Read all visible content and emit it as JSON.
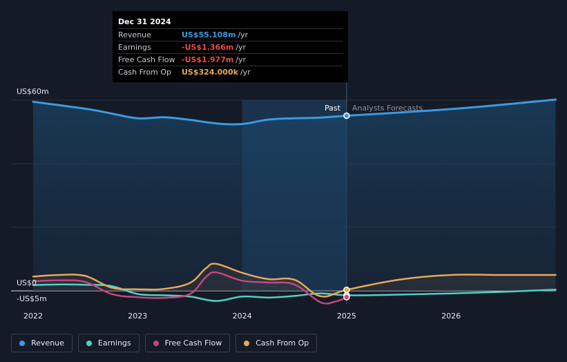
{
  "tooltip": {
    "date": "Dec 31 2024",
    "rows": [
      {
        "name": "Revenue",
        "value": "US$55.108m",
        "unit": "/yr",
        "color": "#3b9ae1"
      },
      {
        "name": "Earnings",
        "value": "-US$1.366m",
        "unit": "/yr",
        "color": "#e84d4d"
      },
      {
        "name": "Free Cash Flow",
        "value": "-US$1.977m",
        "unit": "/yr",
        "color": "#e84d4d"
      },
      {
        "name": "Cash From Op",
        "value": "US$324.000k",
        "unit": "/yr",
        "color": "#e8a856"
      }
    ]
  },
  "legend": [
    {
      "label": "Revenue",
      "color": "#3b9ae1"
    },
    {
      "label": "Earnings",
      "color": "#4fd1c5"
    },
    {
      "label": "Free Cash Flow",
      "color": "#c8457e"
    },
    {
      "label": "Cash From Op",
      "color": "#e8a856"
    }
  ],
  "chart_data": {
    "type": "line",
    "xlim": [
      2022,
      2027
    ],
    "ylim": [
      -5,
      60
    ],
    "y_tick_labels": [
      {
        "value": 60,
        "label": "US$60m"
      },
      {
        "value": 0,
        "label": "US$0"
      },
      {
        "value": -5,
        "label": "-US$5m"
      }
    ],
    "x_tick_labels": [
      "2022",
      "2023",
      "2024",
      "2025",
      "2026"
    ],
    "past_label": "Past",
    "forecast_label": "Analysts Forecasts",
    "divider_x": 2025,
    "highlight_range": [
      2024,
      2025
    ],
    "grid": true,
    "legend_position": "bottom-left",
    "series": [
      {
        "name": "Revenue",
        "color": "#3b9ae1",
        "x": [
          2022,
          2022.5,
          2022.75,
          2023,
          2023.25,
          2023.5,
          2023.75,
          2024,
          2024.25,
          2024.5,
          2024.75,
          2025,
          2025.5,
          2026,
          2026.5,
          2027
        ],
        "y": [
          59.5,
          57.3,
          55.8,
          54.3,
          54.6,
          53.8,
          52.7,
          52.5,
          53.9,
          54.3,
          54.5,
          55.1,
          56.1,
          57.2,
          58.6,
          60.2
        ]
      },
      {
        "name": "Earnings",
        "color": "#4fd1c5",
        "x": [
          2022,
          2022.25,
          2022.5,
          2022.75,
          2023,
          2023.25,
          2023.5,
          2023.75,
          2024,
          2024.25,
          2024.5,
          2024.75,
          2025,
          2025.5,
          2026,
          2026.5,
          2027
        ],
        "y": [
          1.8,
          2.0,
          1.9,
          1.5,
          -1.0,
          -1.4,
          -1.8,
          -3.2,
          -1.8,
          -2.1,
          -1.6,
          -0.8,
          -1.4,
          -1.2,
          -0.8,
          -0.3,
          0.4
        ]
      },
      {
        "name": "Free Cash Flow",
        "color": "#c8457e",
        "x": [
          2022,
          2022.25,
          2022.5,
          2022.75,
          2023,
          2023.25,
          2023.5,
          2023.65,
          2023.75,
          2024,
          2024.25,
          2024.5,
          2024.75,
          2024.9,
          2025
        ],
        "y": [
          3.0,
          3.3,
          2.8,
          -1.0,
          -2.0,
          -2.2,
          -1.0,
          4.2,
          5.8,
          3.2,
          2.6,
          2.0,
          -3.6,
          -3.3,
          -1.97
        ]
      },
      {
        "name": "Cash From Op",
        "color": "#e8a856",
        "x": [
          2022,
          2022.25,
          2022.5,
          2022.75,
          2023,
          2023.25,
          2023.5,
          2023.65,
          2023.75,
          2024,
          2024.25,
          2024.5,
          2024.75,
          2025,
          2025.5,
          2026,
          2026.5,
          2027
        ],
        "y": [
          4.5,
          5.0,
          4.7,
          1.0,
          0.5,
          0.6,
          2.5,
          7.0,
          8.5,
          5.7,
          3.7,
          3.5,
          -1.7,
          0.3,
          3.5,
          5.0,
          5.0,
          5.0
        ]
      }
    ]
  }
}
